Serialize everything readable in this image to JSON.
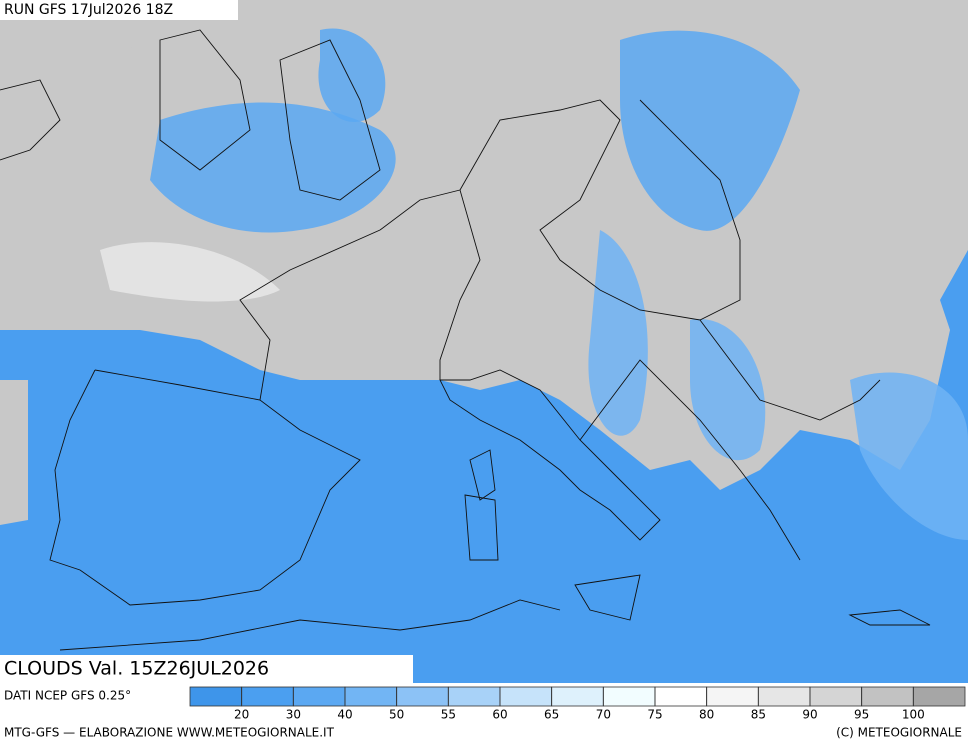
{
  "header": {
    "run": "RUN GFS 17Jul2026 18Z"
  },
  "map": {
    "field": "CLOUDS Val. 15Z26JUL2026"
  },
  "legend": {
    "source": "DATI NCEP GFS 0.25°",
    "colors": [
      "#3e95ea",
      "#4b9ff0",
      "#5ba8f2",
      "#72b5f4",
      "#8cc2f6",
      "#a8d2f8",
      "#c6e3fa",
      "#def1fc",
      "#f2fdff",
      "#ffffff",
      "#f5f5f5",
      "#e6e6e6",
      "#d5d5d5",
      "#c2c2c2",
      "#a6a6a6"
    ],
    "ticks": [
      20,
      30,
      40,
      50,
      55,
      60,
      65,
      70,
      75,
      80,
      85,
      90,
      95,
      100
    ]
  },
  "footer": {
    "left": "MTG-GFS — ELABORAZIONE WWW.METEOGIORNALE.IT",
    "right": "(C) METEOGIORNALE"
  }
}
